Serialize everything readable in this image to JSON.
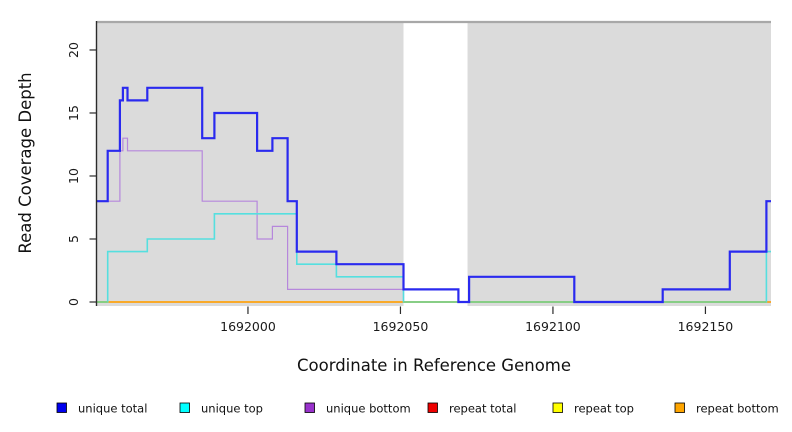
{
  "chart_data": {
    "type": "line",
    "subtype": "step",
    "title": "",
    "xlabel": "Coordinate in Reference Genome",
    "ylabel": "Read Coverage Depth",
    "xlim": [
      1691950.5,
      1692171.5
    ],
    "ylim": [
      0,
      22.3
    ],
    "xticks": [
      1692000,
      1692050,
      1692100,
      1692150
    ],
    "yticks": [
      0,
      5,
      10,
      15,
      20
    ],
    "grid": false,
    "legend_position": "bottom",
    "plot_bg_color": "#DBDBDB",
    "plot_top_border_color": "#A8A8A8",
    "axis_color": "#2b2b2b",
    "background_regions": [
      {
        "name": "covered-region-1",
        "x0": 1691950.5,
        "x1": 1692051,
        "color": "#DBDBDB"
      },
      {
        "name": "uncovered-gap",
        "x0": 1692051,
        "x1": 1692072,
        "color": "#FFFFFF"
      },
      {
        "name": "covered-region-2",
        "x0": 1692072,
        "x1": 1692171.5,
        "color": "#DBDBDB"
      }
    ],
    "series": [
      {
        "name": "unique total",
        "line_color": "#2A2AEF",
        "legend_color": "#0000EE",
        "width": 2.2,
        "steps": [
          [
            1691950.5,
            8
          ],
          [
            1691954,
            12
          ],
          [
            1691958,
            16
          ],
          [
            1691959,
            17
          ],
          [
            1691960.5,
            16
          ],
          [
            1691967,
            17
          ],
          [
            1691985,
            13
          ],
          [
            1691989,
            15
          ],
          [
            1692003,
            12
          ],
          [
            1692008,
            13
          ],
          [
            1692013,
            8
          ],
          [
            1692016,
            4
          ],
          [
            1692029,
            3
          ],
          [
            1692051,
            1
          ],
          [
            1692069,
            0
          ],
          [
            1692072.5,
            2
          ],
          [
            1692107,
            0
          ],
          [
            1692136,
            1
          ],
          [
            1692158,
            4
          ],
          [
            1692170,
            8
          ]
        ],
        "end": 1692171.5
      },
      {
        "name": "unique top",
        "line_color": "#55DFDF",
        "legend_color": "#00FFFF",
        "width": 1.6,
        "steps": [
          [
            1691950.5,
            0
          ],
          [
            1691954,
            4
          ],
          [
            1691967,
            5
          ],
          [
            1691989,
            7
          ],
          [
            1692016,
            3
          ],
          [
            1692029,
            2
          ],
          [
            1692051,
            0
          ],
          [
            1692170,
            4
          ]
        ],
        "end": 1692171.5
      },
      {
        "name": "unique bottom",
        "line_color": "#B687DC",
        "legend_color": "#9932CC",
        "width": 1.2,
        "steps": [
          [
            1691950.5,
            8
          ],
          [
            1691958,
            12
          ],
          [
            1691959,
            13
          ],
          [
            1691960.5,
            12
          ],
          [
            1691985,
            8
          ],
          [
            1692003,
            5
          ],
          [
            1692008,
            6
          ],
          [
            1692013,
            1
          ],
          [
            1692051,
            0
          ]
        ],
        "end": 1692171.5
      },
      {
        "name": "repeat total",
        "line_color": "#E60000",
        "legend_color": "#EE0000",
        "width": 1.2,
        "steps": [
          [
            1691950.5,
            0
          ]
        ],
        "end": 1692171.5
      },
      {
        "name": "repeat top",
        "line_color": "#FFFF00",
        "legend_color": "#FFFF00",
        "width": 1.2,
        "steps": [
          [
            1691950.5,
            0
          ]
        ],
        "end": 1692171.5
      },
      {
        "name": "repeat bottom",
        "line_color": "#FFA510",
        "legend_color": "#FFA500",
        "width": 1.6,
        "steps": [
          [
            1691950.5,
            0
          ]
        ],
        "end": 1692171.5
      }
    ],
    "zero_line_overlays": [
      {
        "name": "cyan-yellow-blend-left",
        "x0": 1691950.5,
        "x1": 1691954,
        "color": "#7FD07F"
      },
      {
        "name": "cyan-yellow-blend-right",
        "x0": 1692051,
        "x1": 1692170,
        "color": "#7FD07F"
      }
    ],
    "z_order": [
      "repeat total",
      "repeat top",
      "unique bottom",
      "repeat bottom",
      "unique top",
      "zero_overlays",
      "unique total"
    ]
  },
  "legend": {
    "items": [
      {
        "label": "unique total",
        "color": "#0000EE"
      },
      {
        "label": "unique top",
        "color": "#00FFFF"
      },
      {
        "label": "unique bottom",
        "color": "#9932CC"
      },
      {
        "label": "repeat total",
        "color": "#EE0000"
      },
      {
        "label": "repeat top",
        "color": "#FFFF00"
      },
      {
        "label": "repeat bottom",
        "color": "#FFA500"
      }
    ]
  }
}
